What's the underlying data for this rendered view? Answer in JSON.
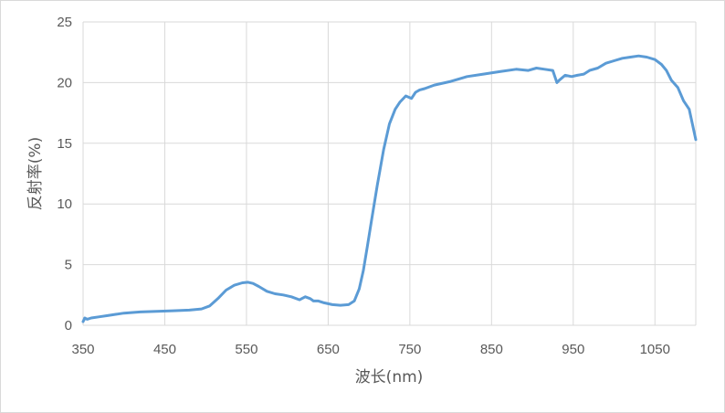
{
  "chart_data": {
    "type": "line",
    "title": "",
    "xlabel": "波长(nm)",
    "ylabel": "反射率(%)",
    "xlim": [
      350,
      1100
    ],
    "ylim": [
      0,
      25
    ],
    "x_ticks": [
      350,
      450,
      550,
      650,
      750,
      850,
      950,
      1050
    ],
    "y_ticks": [
      0,
      5,
      10,
      15,
      20,
      25
    ],
    "x_tick_labels": [
      "350",
      "450",
      "550",
      "650",
      "750",
      "850",
      "950",
      "1050"
    ],
    "y_tick_labels": [
      "0",
      "5",
      "10",
      "15",
      "20",
      "25"
    ],
    "grid": true,
    "legend": "none",
    "series": [
      {
        "color": "#5b9bd5",
        "x": [
          350,
          352,
          355,
          360,
          370,
          380,
          390,
          400,
          420,
          440,
          460,
          480,
          495,
          505,
          515,
          525,
          535,
          545,
          552,
          558,
          565,
          575,
          585,
          595,
          605,
          615,
          622,
          628,
          632,
          638,
          645,
          655,
          665,
          675,
          682,
          688,
          693,
          698,
          703,
          710,
          718,
          725,
          732,
          738,
          745,
          752,
          757,
          762,
          768,
          780,
          800,
          820,
          840,
          860,
          880,
          895,
          905,
          915,
          925,
          930,
          933,
          940,
          948,
          955,
          963,
          970,
          980,
          990,
          1000,
          1010,
          1020,
          1030,
          1040,
          1050,
          1058,
          1064,
          1070,
          1078,
          1085,
          1092,
          1100
        ],
        "y": [
          0.3,
          0.6,
          0.5,
          0.6,
          0.7,
          0.8,
          0.9,
          1.0,
          1.1,
          1.15,
          1.2,
          1.25,
          1.35,
          1.6,
          2.2,
          2.9,
          3.3,
          3.5,
          3.55,
          3.45,
          3.2,
          2.8,
          2.6,
          2.5,
          2.35,
          2.1,
          2.35,
          2.2,
          2.0,
          2.0,
          1.85,
          1.7,
          1.65,
          1.7,
          2.0,
          3.0,
          4.5,
          6.5,
          8.6,
          11.5,
          14.5,
          16.6,
          17.8,
          18.4,
          18.9,
          18.7,
          19.2,
          19.4,
          19.5,
          19.8,
          20.1,
          20.5,
          20.7,
          20.9,
          21.1,
          21.0,
          21.2,
          21.1,
          21.0,
          20.0,
          20.2,
          20.6,
          20.5,
          20.6,
          20.7,
          21.0,
          21.2,
          21.6,
          21.8,
          22.0,
          22.1,
          22.2,
          22.1,
          21.9,
          21.5,
          21.0,
          20.2,
          19.6,
          18.5,
          17.8,
          15.3
        ]
      }
    ]
  }
}
